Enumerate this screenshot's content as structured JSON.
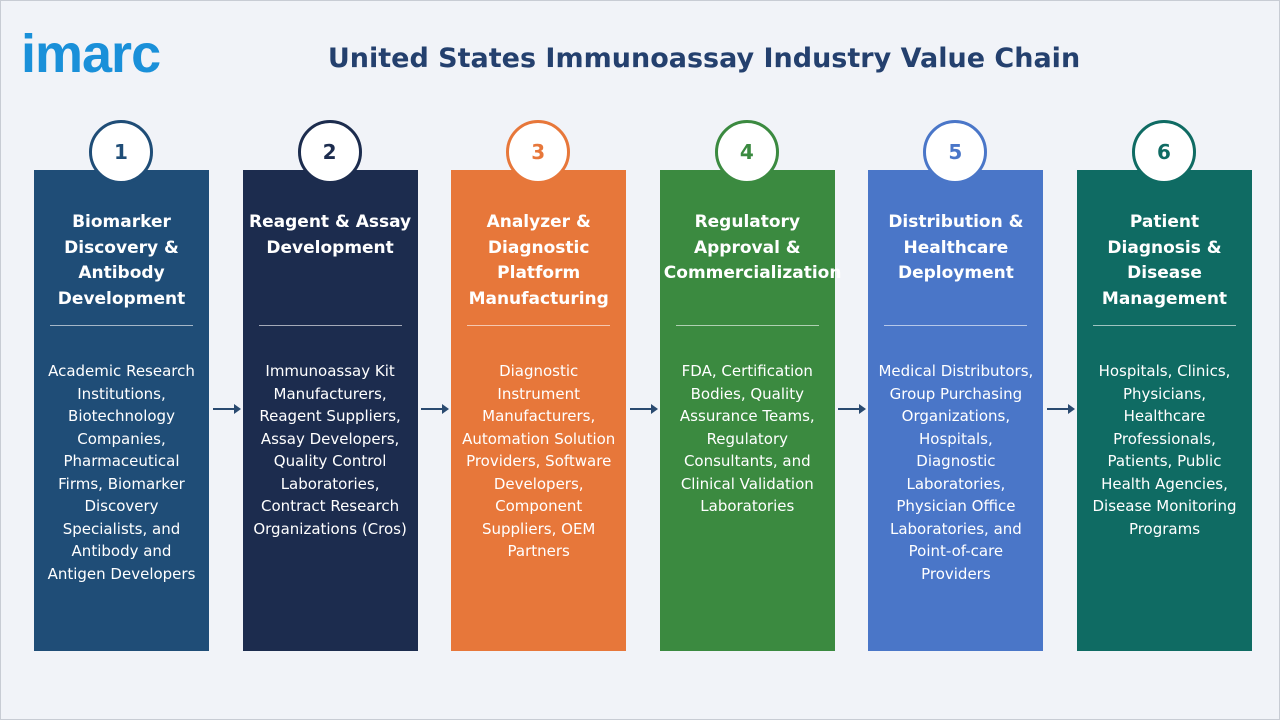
{
  "header": {
    "logo": "imarc",
    "title": "United States Immunoassay Industry Value Chain"
  },
  "stages": [
    {
      "number": "1",
      "title": "Biomarker Discovery & Antibody Development",
      "description": "Academic Research Institutions, Biotechnology Companies, Pharmaceutical Firms, Biomarker Discovery Specialists, and Antibody and Antigen Developers"
    },
    {
      "number": "2",
      "title": "Reagent & Assay Development",
      "description": "Immunoassay Kit Manufacturers, Reagent Suppliers, Assay Developers, Quality Control Laboratories, Contract Research Organizations (Cros)"
    },
    {
      "number": "3",
      "title": "Analyzer & Diagnostic Platform Manufacturing",
      "description": "Diagnostic Instrument Manufacturers, Automation Solution Providers, Software Developers, Component Suppliers, OEM Partners"
    },
    {
      "number": "4",
      "title": "Regulatory Approval & Commercialization",
      "description": "FDA, Certification Bodies, Quality Assurance Teams, Regulatory Consultants, and Clinical Validation Laboratories"
    },
    {
      "number": "5",
      "title": "Distribution & Healthcare Deployment",
      "description": "Medical Distributors, Group Purchasing Organizations, Hospitals, Diagnostic Laboratories, Physician Office Laboratories, and Point-of-care Providers"
    },
    {
      "number": "6",
      "title": "Patient Diagnosis & Disease Management",
      "description": "Hospitals, Clinics, Physicians, Healthcare Professionals, Patients, Public Health Agencies, Disease Monitoring Programs"
    }
  ]
}
